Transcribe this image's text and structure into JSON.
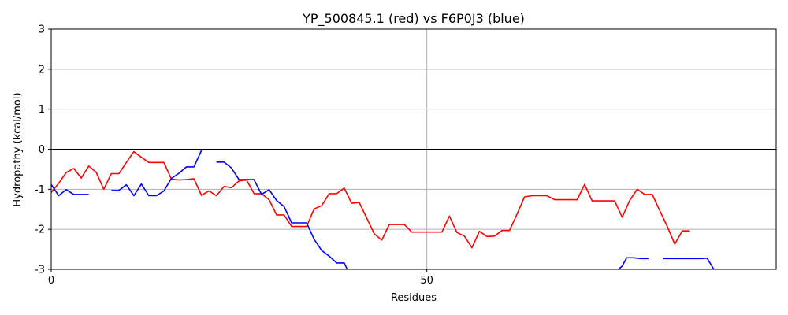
{
  "chart_data": {
    "type": "line",
    "title": "YP_500845.1 (red) vs F6P0J3 (blue)",
    "xlabel": "Residues",
    "ylabel": "Hydropathy (kcal/mol)",
    "xlim": [
      0,
      96.5
    ],
    "ylim": [
      -3,
      3
    ],
    "xticks": [
      0,
      50
    ],
    "yticks": [
      -3,
      -2,
      -1,
      0,
      1,
      2,
      3
    ],
    "grid": true,
    "zero_line": true,
    "series": [
      {
        "name": "YP_500845.1",
        "color": "#ff0000",
        "segments": [
          [
            [
              0,
              -1.08
            ],
            [
              1,
              -0.85
            ],
            [
              2,
              -0.58
            ],
            [
              3,
              -0.48
            ],
            [
              4,
              -0.72
            ],
            [
              5,
              -0.42
            ],
            [
              6,
              -0.58
            ],
            [
              7,
              -1.0
            ],
            [
              8,
              -0.61
            ],
            [
              9,
              -0.61
            ],
            [
              10,
              -0.33
            ],
            [
              11,
              -0.06
            ],
            [
              12,
              -0.2
            ],
            [
              13,
              -0.33
            ],
            [
              14,
              -0.33
            ],
            [
              15,
              -0.33
            ],
            [
              16,
              -0.75
            ],
            [
              17,
              -0.77
            ],
            [
              18,
              -0.76
            ],
            [
              19,
              -0.74
            ],
            [
              20,
              -1.15
            ],
            [
              21,
              -1.04
            ],
            [
              22,
              -1.16
            ],
            [
              23,
              -0.93
            ],
            [
              24,
              -0.96
            ],
            [
              25,
              -0.79
            ],
            [
              26,
              -0.77
            ],
            [
              27,
              -1.11
            ],
            [
              28,
              -1.11
            ],
            [
              29,
              -1.26
            ],
            [
              30,
              -1.64
            ],
            [
              31,
              -1.64
            ],
            [
              32,
              -1.93
            ],
            [
              33,
              -1.93
            ],
            [
              34,
              -1.93
            ],
            [
              35,
              -1.49
            ],
            [
              36,
              -1.41
            ],
            [
              37,
              -1.11
            ],
            [
              38,
              -1.11
            ],
            [
              39,
              -0.97
            ],
            [
              40,
              -1.35
            ],
            [
              41,
              -1.33
            ],
            [
              42,
              -1.72
            ],
            [
              43,
              -2.11
            ],
            [
              44,
              -2.27
            ],
            [
              45,
              -1.88
            ],
            [
              46,
              -1.88
            ],
            [
              47,
              -1.88
            ],
            [
              48,
              -2.07
            ],
            [
              49,
              -2.07
            ],
            [
              50,
              -2.07
            ],
            [
              51,
              -2.07
            ],
            [
              52,
              -2.07
            ],
            [
              53,
              -1.67
            ],
            [
              54,
              -2.08
            ],
            [
              55,
              -2.17
            ],
            [
              56,
              -2.46
            ],
            [
              57,
              -2.05
            ],
            [
              58,
              -2.18
            ],
            [
              59,
              -2.17
            ],
            [
              60,
              -2.03
            ],
            [
              61,
              -2.03
            ],
            [
              62,
              -1.62
            ],
            [
              63,
              -1.19
            ],
            [
              64,
              -1.16
            ],
            [
              65,
              -1.16
            ],
            [
              66,
              -1.16
            ],
            [
              67,
              -1.26
            ],
            [
              68,
              -1.26
            ],
            [
              69,
              -1.26
            ],
            [
              70,
              -1.26
            ],
            [
              71,
              -0.88
            ],
            [
              72,
              -1.29
            ],
            [
              73,
              -1.29
            ],
            [
              74,
              -1.29
            ],
            [
              75,
              -1.29
            ],
            [
              76,
              -1.7
            ],
            [
              77,
              -1.28
            ],
            [
              78,
              -1.0
            ],
            [
              79,
              -1.13
            ],
            [
              80,
              -1.13
            ],
            [
              81,
              -1.53
            ],
            [
              82,
              -1.93
            ],
            [
              83,
              -2.37
            ],
            [
              84,
              -2.04
            ],
            [
              85,
              -2.04
            ]
          ]
        ]
      },
      {
        "name": "F6P0J3",
        "color": "#0000ff",
        "segments": [
          [
            [
              0,
              -0.88
            ],
            [
              1,
              -1.16
            ],
            [
              2,
              -1.01
            ],
            [
              3,
              -1.13
            ],
            [
              4,
              -1.13
            ],
            [
              5,
              -1.13
            ]
          ],
          [
            [
              8,
              -1.03
            ],
            [
              9,
              -1.03
            ],
            [
              10,
              -0.89
            ],
            [
              11,
              -1.16
            ],
            [
              12,
              -0.87
            ],
            [
              13,
              -1.16
            ],
            [
              14,
              -1.16
            ],
            [
              15,
              -1.04
            ],
            [
              16,
              -0.73
            ],
            [
              17,
              -0.6
            ],
            [
              18,
              -0.44
            ],
            [
              19,
              -0.44
            ],
            [
              20,
              -0.03
            ]
          ],
          [
            [
              22,
              -0.32
            ],
            [
              23,
              -0.32
            ],
            [
              24,
              -0.47
            ],
            [
              25,
              -0.76
            ],
            [
              26,
              -0.76
            ],
            [
              27,
              -0.76
            ],
            [
              28,
              -1.13
            ],
            [
              29,
              -1.01
            ],
            [
              30,
              -1.28
            ],
            [
              31,
              -1.43
            ],
            [
              32,
              -1.84
            ],
            [
              33,
              -1.84
            ],
            [
              34,
              -1.84
            ],
            [
              35,
              -2.25
            ],
            [
              36,
              -2.53
            ],
            [
              37,
              -2.67
            ],
            [
              38,
              -2.84
            ],
            [
              39,
              -2.84
            ],
            [
              39.4,
              -3.0
            ]
          ],
          [
            [
              75.5,
              -3.0
            ],
            [
              76,
              -2.92
            ],
            [
              76.6,
              -2.71
            ],
            [
              77.5,
              -2.71
            ],
            [
              78.5,
              -2.73
            ],
            [
              79.5,
              -2.73
            ]
          ],
          [
            [
              81.5,
              -2.73
            ],
            [
              82.5,
              -2.73
            ],
            [
              83.5,
              -2.73
            ],
            [
              84.5,
              -2.73
            ],
            [
              85.5,
              -2.73
            ],
            [
              86.5,
              -2.73
            ],
            [
              87.3,
              -2.72
            ],
            [
              88.2,
              -3.0
            ]
          ]
        ]
      }
    ]
  }
}
